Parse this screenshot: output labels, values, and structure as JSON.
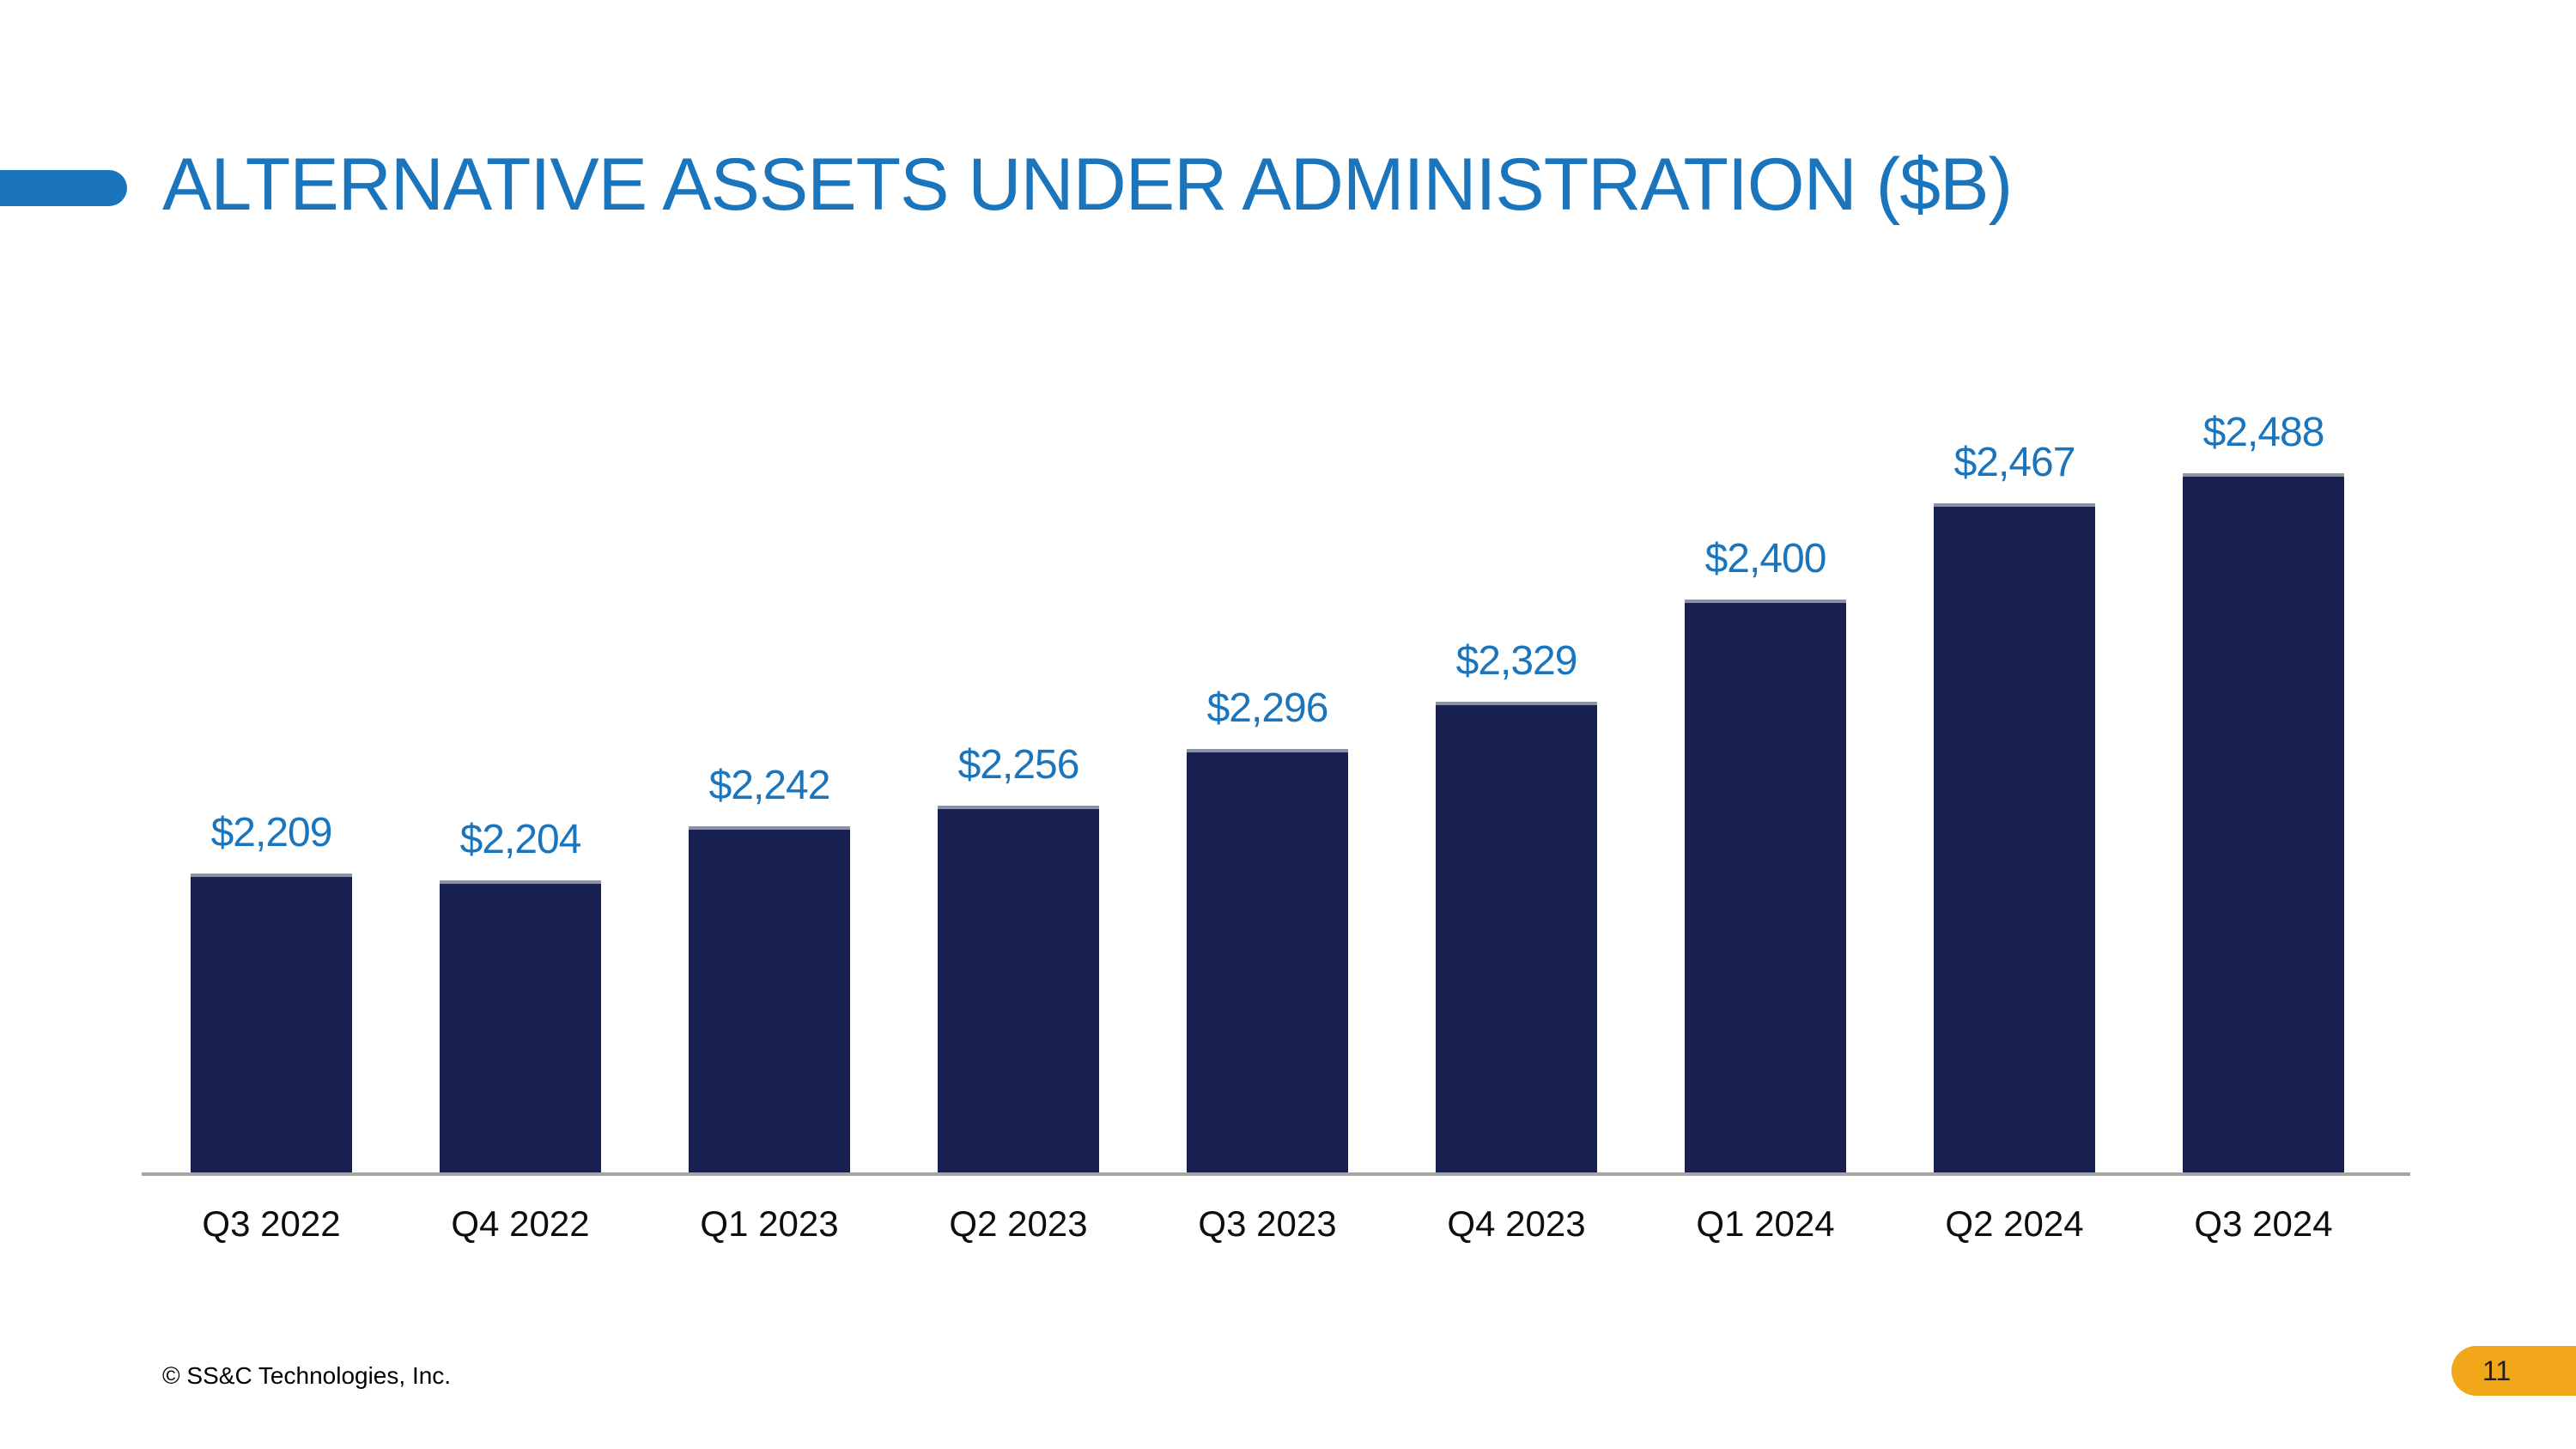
{
  "slide": {
    "title": "ALTERNATIVE ASSETS UNDER ADMINISTRATION ($B)",
    "footer": "© SS&C Technologies, Inc.",
    "page_number": "11"
  },
  "colors": {
    "brand_blue": "#1B75BC",
    "bar_navy": "#182052",
    "axis_gray": "#A6A6A6",
    "badge_orange": "#F2A61A"
  },
  "chart_data": {
    "type": "bar",
    "title": "ALTERNATIVE ASSETS UNDER ADMINISTRATION ($B)",
    "categories": [
      "Q3 2022",
      "Q4 2022",
      "Q1 2023",
      "Q2 2023",
      "Q3 2023",
      "Q4 2023",
      "Q1 2024",
      "Q2 2024",
      "Q3 2024"
    ],
    "values": [
      2209,
      2204,
      2242,
      2256,
      2296,
      2329,
      2400,
      2467,
      2488
    ],
    "value_labels": [
      "$2,209",
      "$2,204",
      "$2,242",
      "$2,256",
      "$2,296",
      "$2,329",
      "$2,400",
      "$2,467",
      "$2,488"
    ],
    "xlabel": "",
    "ylabel": "",
    "ylim": [
      2000,
      2550
    ],
    "grid": false,
    "legend": "none",
    "bar_color": "#182052",
    "label_color": "#1B75BC"
  }
}
